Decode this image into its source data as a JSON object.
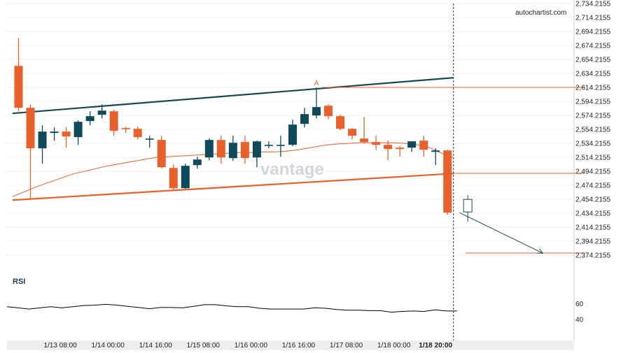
{
  "brand": "autochartist.com",
  "watermark": "vantage",
  "rsi_label": "RSI",
  "colors": {
    "bull": "#0f4a5a",
    "bear": "#e8602c",
    "upper_trend": "#184a52",
    "lower_trend": "#e8602c",
    "ma": "#e8602c",
    "rsi": "#000000",
    "forecast": "#1f4a5a",
    "grid": "#e6e6e6"
  },
  "chart_data": {
    "type": "candlestick",
    "price_axis": {
      "min": 2364.2155,
      "max": 2734.2155,
      "ticks": [
        "2,734.2155",
        "2,714.2155",
        "2,694.2155",
        "2,674.2155",
        "2,654.2155",
        "2,634.2155",
        "2,614.2155",
        "2,594.2155",
        "2,574.2155",
        "2,554.2155",
        "2,534.2155",
        "2,514.2155",
        "2,494.2155",
        "2,474.2155",
        "2,454.2155",
        "2,434.2155",
        "2,414.2155",
        "2,394.2155",
        "2,374.2155"
      ]
    },
    "time_axis": {
      "labels": [
        "1/13 08:00",
        "1/14 00:00",
        "1/14 16:00",
        "1/15 08:00",
        "1/16 00:00",
        "1/16 16:00",
        "1/17 08:00",
        "1/18 00:00",
        "1/18 20:00"
      ],
      "label_bars": [
        3.5,
        7.5,
        11.5,
        15.5,
        19.5,
        23.5,
        27.5,
        31.5,
        35.0
      ],
      "highlight_label": "1/18 20:00"
    },
    "candles": [
      {
        "o": 2645,
        "h": 2685,
        "l": 2580,
        "c": 2585
      },
      {
        "o": 2585,
        "h": 2590,
        "l": 2455,
        "c": 2527
      },
      {
        "o": 2527,
        "h": 2560,
        "l": 2505,
        "c": 2551
      },
      {
        "o": 2549,
        "h": 2557,
        "l": 2538,
        "c": 2551
      },
      {
        "o": 2551,
        "h": 2557,
        "l": 2528,
        "c": 2544
      },
      {
        "o": 2543,
        "h": 2567,
        "l": 2532,
        "c": 2565
      },
      {
        "o": 2566,
        "h": 2580,
        "l": 2560,
        "c": 2573
      },
      {
        "o": 2575,
        "h": 2590,
        "l": 2570,
        "c": 2581
      },
      {
        "o": 2580,
        "h": 2582,
        "l": 2545,
        "c": 2552
      },
      {
        "o": 2556,
        "h": 2558,
        "l": 2549,
        "c": 2555
      },
      {
        "o": 2555,
        "h": 2558,
        "l": 2540,
        "c": 2543
      },
      {
        "o": 2541,
        "h": 2545,
        "l": 2528,
        "c": 2541
      },
      {
        "o": 2539,
        "h": 2545,
        "l": 2498,
        "c": 2500
      },
      {
        "o": 2499,
        "h": 2504,
        "l": 2468,
        "c": 2470
      },
      {
        "o": 2470,
        "h": 2505,
        "l": 2469,
        "c": 2502
      },
      {
        "o": 2503,
        "h": 2515,
        "l": 2498,
        "c": 2511
      },
      {
        "o": 2514,
        "h": 2541,
        "l": 2510,
        "c": 2539
      },
      {
        "o": 2539,
        "h": 2545,
        "l": 2505,
        "c": 2514
      },
      {
        "o": 2513,
        "h": 2545,
        "l": 2509,
        "c": 2535
      },
      {
        "o": 2536,
        "h": 2545,
        "l": 2505,
        "c": 2513
      },
      {
        "o": 2514,
        "h": 2538,
        "l": 2500,
        "c": 2537
      },
      {
        "o": 2531,
        "h": 2537,
        "l": 2527,
        "c": 2532
      },
      {
        "o": 2531,
        "h": 2545,
        "l": 2515,
        "c": 2532
      },
      {
        "o": 2532,
        "h": 2568,
        "l": 2530,
        "c": 2561
      },
      {
        "o": 2562,
        "h": 2585,
        "l": 2557,
        "c": 2576
      },
      {
        "o": 2574,
        "h": 2614,
        "l": 2570,
        "c": 2586
      },
      {
        "o": 2588,
        "h": 2590,
        "l": 2569,
        "c": 2573
      },
      {
        "o": 2573,
        "h": 2575,
        "l": 2553,
        "c": 2555
      },
      {
        "o": 2555,
        "h": 2556,
        "l": 2540,
        "c": 2545
      },
      {
        "o": 2541,
        "h": 2572,
        "l": 2534,
        "c": 2536
      },
      {
        "o": 2536,
        "h": 2545,
        "l": 2525,
        "c": 2532
      },
      {
        "o": 2532,
        "h": 2538,
        "l": 2510,
        "c": 2526
      },
      {
        "o": 2528,
        "h": 2530,
        "l": 2515,
        "c": 2526
      },
      {
        "o": 2528,
        "h": 2537,
        "l": 2522,
        "c": 2537
      },
      {
        "o": 2538,
        "h": 2545,
        "l": 2515,
        "c": 2525
      },
      {
        "o": 2522,
        "h": 2527,
        "l": 2503,
        "c": 2524
      },
      {
        "o": 2524,
        "h": 2525,
        "l": 2432,
        "c": 2435
      }
    ],
    "forecast_candle": {
      "o": 2436,
      "h": 2460,
      "l": 2422,
      "c": 2454
    },
    "moving_average": [
      2458,
      2465,
      2472,
      2478,
      2484,
      2490,
      2494,
      2498,
      2502,
      2505,
      2508,
      2511,
      2514,
      2515,
      2516,
      2517,
      2518,
      2519,
      2520,
      2521,
      2521,
      2522,
      2522,
      2523,
      2525,
      2528,
      2531,
      2533,
      2534,
      2535,
      2535,
      2535,
      2535,
      2534,
      2532,
      2528,
      2520,
      2514
    ],
    "upper_trendline": {
      "from": {
        "bar": -0.5,
        "price": 2577
      },
      "to": {
        "bar": 36.5,
        "price": 2628
      }
    },
    "lower_trendline": {
      "from": {
        "bar": -0.5,
        "price": 2453
      },
      "to": {
        "bar": 36.5,
        "price": 2491
      }
    },
    "target_levels": [
      {
        "price": 2614.2155,
        "from_bar": 25.5,
        "to_bar": 47.5
      },
      {
        "price": 2491.2155,
        "from_bar": 36.5,
        "to_bar": 47.5
      },
      {
        "price": 2377.2155,
        "from_bar": 37.5,
        "to_bar": 47.5
      }
    ],
    "point_label": {
      "text": "A",
      "bar": 25.0,
      "price": 2616
    },
    "forecast_arrow": {
      "from": {
        "bar": 37.0,
        "price": 2435
      },
      "to": {
        "bar": 44.0,
        "price": 2377
      }
    },
    "current_time_bar": 36.5,
    "rsi": {
      "ticks": [
        "60",
        "40"
      ],
      "tick_values": [
        60,
        40
      ],
      "range": [
        30,
        70
      ],
      "values": [
        56.0,
        54.5,
        53.0,
        54.5,
        56.0,
        54.5,
        56.0,
        57.5,
        58.0,
        59.0,
        58.0,
        56.5,
        55.0,
        53.5,
        55.0,
        55.0,
        54.5,
        56.5,
        58.5,
        58.5,
        57.0,
        56.0,
        56.0,
        54.0,
        53.0,
        53.0,
        53.0,
        53.0,
        54.5,
        54.0,
        52.5,
        51.5,
        51.5,
        51.0,
        51.0,
        49.0,
        50.0,
        50.5,
        50.0,
        52.0,
        50.5,
        50.5
      ]
    }
  }
}
